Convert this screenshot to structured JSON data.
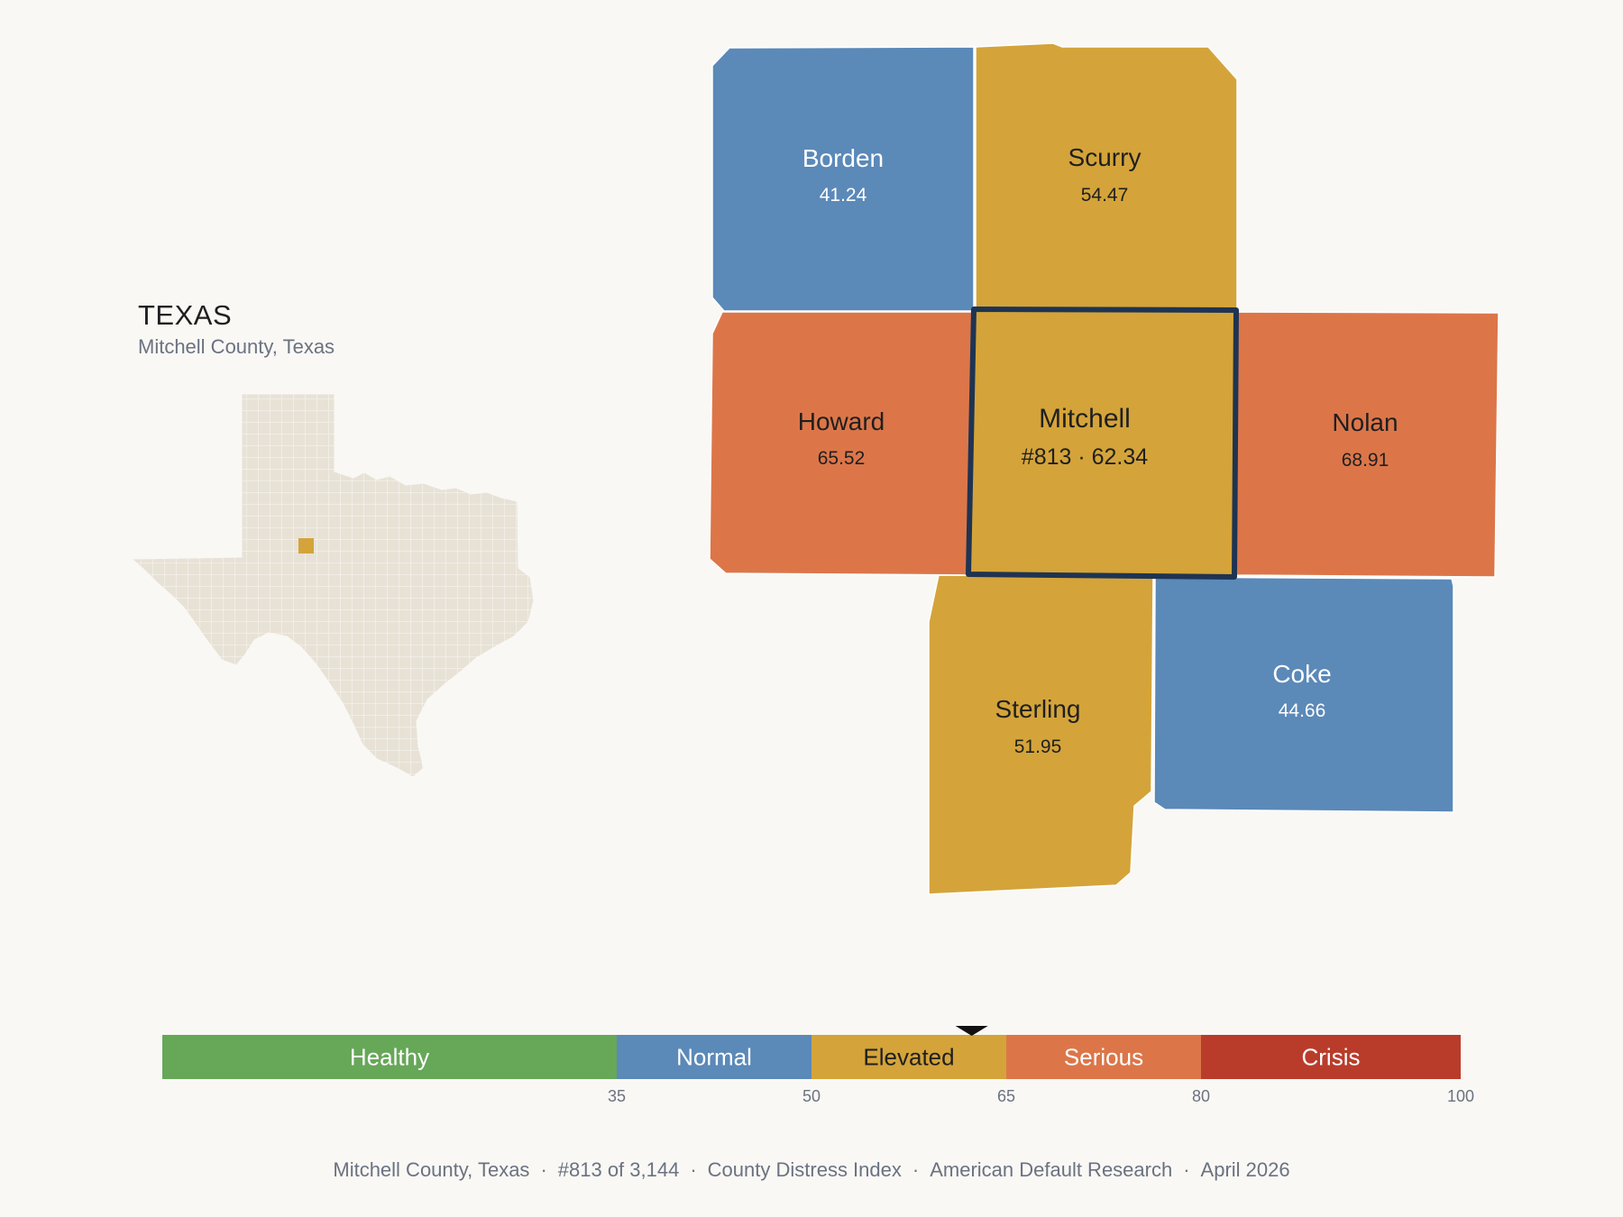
{
  "state": {
    "title": "TEXAS",
    "subtitle": "Mitchell County, Texas",
    "base_color": "#e8e2d6",
    "highlight_color": "#d4a43a"
  },
  "counties": [
    {
      "id": "borden",
      "name": "Borden",
      "value": "41.24",
      "fill": "#5b89b8",
      "text_color": "#ffffff"
    },
    {
      "id": "scurry",
      "name": "Scurry",
      "value": "54.47",
      "fill": "#d4a43a",
      "text_color": "#1f1f1f"
    },
    {
      "id": "howard",
      "name": "Howard",
      "value": "65.52",
      "fill": "#dc7649",
      "text_color": "#1f1f1f"
    },
    {
      "id": "mitchell",
      "name": "Mitchell",
      "value": "#813 · 62.34",
      "fill": "#d4a43a",
      "text_color": "#1f1f1f",
      "selected": true,
      "outline": "#1f3452"
    },
    {
      "id": "nolan",
      "name": "Nolan",
      "value": "68.91",
      "fill": "#dc7649",
      "text_color": "#1f1f1f"
    },
    {
      "id": "sterling",
      "name": "Sterling",
      "value": "51.95",
      "fill": "#d4a43a",
      "text_color": "#1f1f1f"
    },
    {
      "id": "coke",
      "name": "Coke",
      "value": "44.66",
      "fill": "#5b89b8",
      "text_color": "#ffffff"
    }
  ],
  "legend": {
    "min": 0,
    "max": 100,
    "marker_value": 62.34,
    "bands": [
      {
        "label": "Healthy",
        "from": 0,
        "to": 35,
        "color": "#67a758",
        "text_color": "#ffffff"
      },
      {
        "label": "Normal",
        "from": 35,
        "to": 50,
        "color": "#5b89b8",
        "text_color": "#ffffff"
      },
      {
        "label": "Elevated",
        "from": 50,
        "to": 65,
        "color": "#d4a43a",
        "text_color": "#1f1f1f"
      },
      {
        "label": "Serious",
        "from": 65,
        "to": 80,
        "color": "#dc7649",
        "text_color": "#ffffff"
      },
      {
        "label": "Crisis",
        "from": 80,
        "to": 100,
        "color": "#b93c2b",
        "text_color": "#ffffff"
      }
    ],
    "ticks": [
      "35",
      "50",
      "65",
      "80",
      "100"
    ]
  },
  "footer": {
    "items": [
      "Mitchell County, Texas",
      "#813 of 3,144",
      "County Distress Index",
      "American Default Research",
      "April 2026"
    ],
    "separator": "·"
  }
}
